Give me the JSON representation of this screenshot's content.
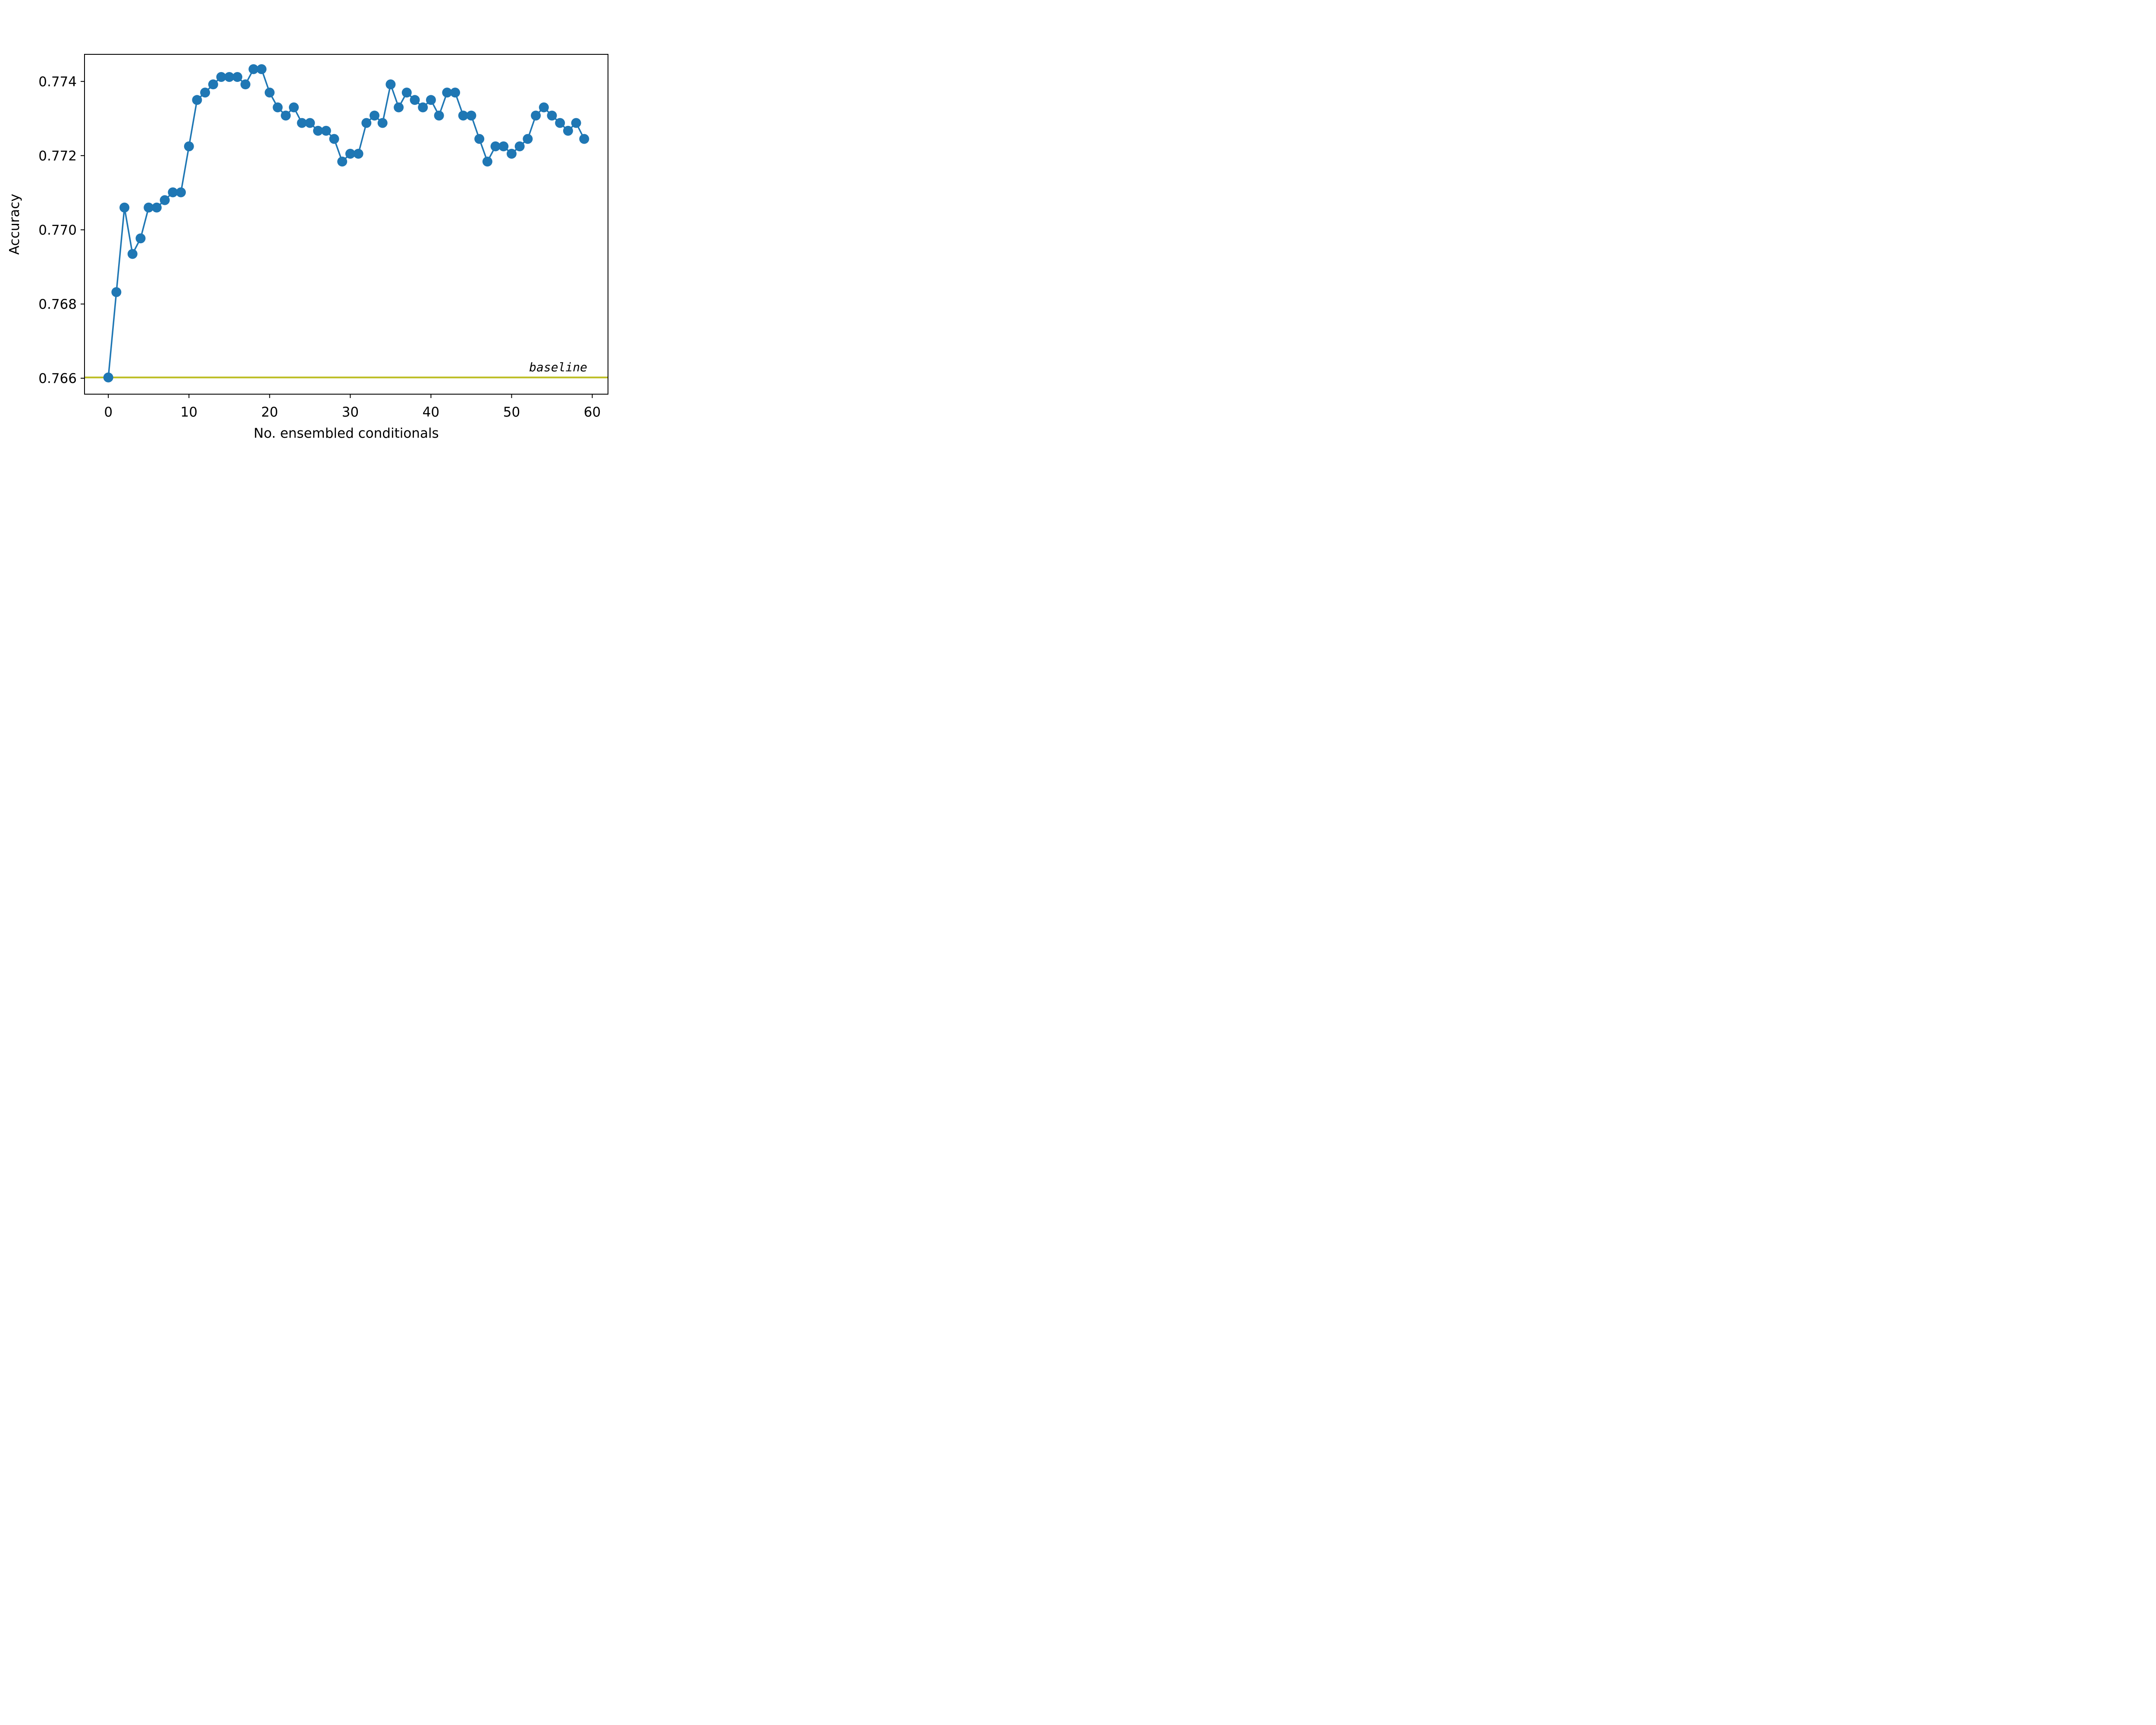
{
  "chart_data": {
    "type": "line",
    "title": "",
    "xlabel": "No. ensembled conditionals",
    "ylabel": "Accuracy",
    "xlim": [
      -2.95,
      61.95
    ],
    "ylim": [
      0.76557,
      0.77473
    ],
    "xticks": [
      0,
      10,
      20,
      30,
      40,
      50,
      60
    ],
    "yticks": [
      0.766,
      0.768,
      0.77,
      0.772,
      0.774
    ],
    "xtick_labels": [
      "0",
      "10",
      "20",
      "30",
      "40",
      "50",
      "60"
    ],
    "ytick_labels": [
      "0.766",
      "0.768",
      "0.770",
      "0.772",
      "0.774"
    ],
    "grid": false,
    "series": [
      {
        "color": "#1f77b4",
        "marker": "circle",
        "x": [
          0,
          1,
          2,
          3,
          4,
          5,
          6,
          7,
          8,
          9,
          10,
          11,
          12,
          13,
          14,
          15,
          16,
          17,
          18,
          19,
          20,
          21,
          22,
          23,
          24,
          25,
          26,
          27,
          28,
          29,
          30,
          31,
          32,
          33,
          34,
          35,
          36,
          37,
          38,
          39,
          40,
          41,
          42,
          43,
          44,
          45,
          46,
          47,
          48,
          49,
          50,
          51,
          52,
          53,
          54,
          55,
          56,
          57,
          58,
          59
        ],
        "y": [
          0.76602,
          0.76832,
          0.7706,
          0.76935,
          0.76977,
          0.7706,
          0.7706,
          0.7708,
          0.77101,
          0.77101,
          0.77225,
          0.7735,
          0.7737,
          0.77392,
          0.77412,
          0.77412,
          0.77412,
          0.77392,
          0.77433,
          0.77433,
          0.7737,
          0.7733,
          0.77308,
          0.7733,
          0.77288,
          0.77288,
          0.77267,
          0.77267,
          0.77245,
          0.77184,
          0.77205,
          0.77205,
          0.77288,
          0.77308,
          0.77288,
          0.77392,
          0.7733,
          0.7737,
          0.7735,
          0.7733,
          0.7735,
          0.77308,
          0.7737,
          0.7737,
          0.77308,
          0.77308,
          0.77245,
          0.77184,
          0.77225,
          0.77225,
          0.77205,
          0.77225,
          0.77245,
          0.77308,
          0.7733,
          0.77308,
          0.77288,
          0.77267,
          0.77288,
          0.77245
        ]
      }
    ],
    "reference_lines": [
      {
        "y": 0.76602,
        "label": "baseline",
        "color": "#bcbd22"
      }
    ]
  }
}
